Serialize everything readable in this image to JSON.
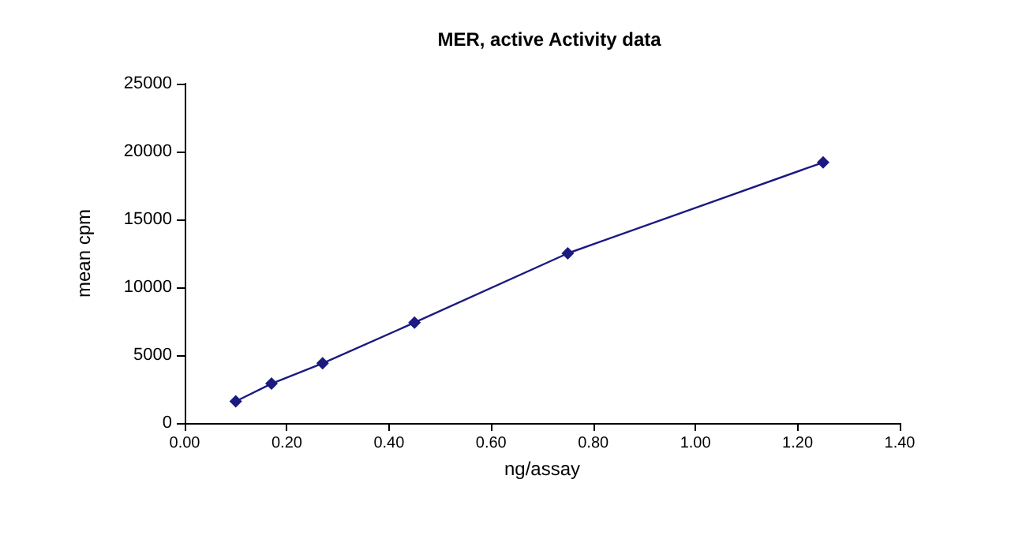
{
  "chart_data": {
    "type": "line",
    "title": "MER, active Activity data",
    "xlabel": "ng/assay",
    "ylabel": "mean cpm",
    "x": [
      0.1,
      0.17,
      0.27,
      0.45,
      0.75,
      1.25
    ],
    "series": [
      {
        "color": "#1a1a80",
        "values": [
          1600,
          2900,
          4400,
          7400,
          12500,
          19200
        ]
      }
    ],
    "xlim": [
      0,
      1.4
    ],
    "xticks": [
      {
        "value": 0,
        "label": "0.00"
      },
      {
        "value": 0.2,
        "label": "0.20"
      },
      {
        "value": 0.4,
        "label": "0.40"
      },
      {
        "value": 0.6,
        "label": "0.60"
      },
      {
        "value": 0.8,
        "label": "0.80"
      },
      {
        "value": 1.0,
        "label": "1.00"
      },
      {
        "value": 1.2,
        "label": "1.20"
      },
      {
        "value": 1.4,
        "label": "1.40"
      }
    ],
    "ylim": [
      0,
      25000
    ],
    "yticks": [
      0,
      5000,
      10000,
      15000,
      20000,
      25000
    ],
    "grid": false,
    "marker": "diamond",
    "line_style": "solid"
  }
}
